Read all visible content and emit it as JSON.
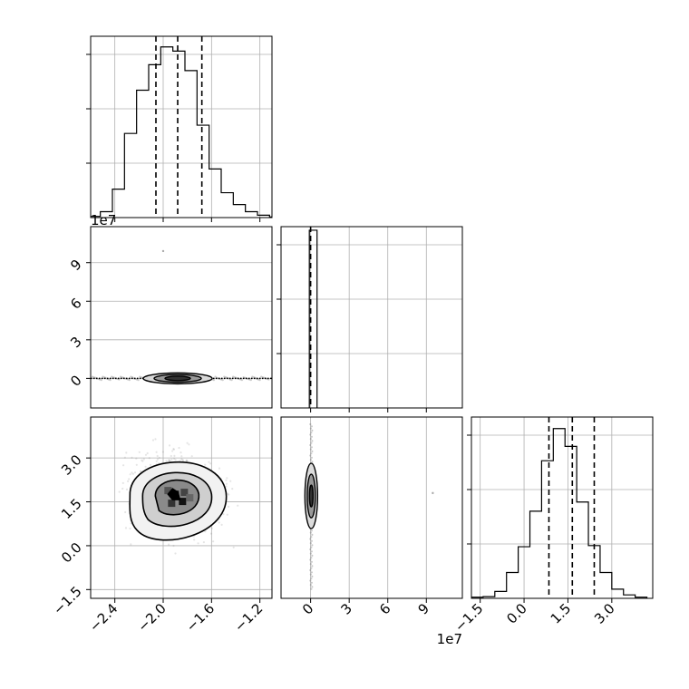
{
  "chart_data": [
    {
      "type": "histogram",
      "panel": "row1-col1",
      "x_ticks": [
        "-2.4",
        "-2.0",
        "-1.6",
        "-1.2"
      ],
      "show_x_ticklabels": false,
      "xlim": [
        -2.6,
        -1.1
      ],
      "bin_edges": [
        -2.62,
        -2.52,
        -2.42,
        -2.32,
        -2.22,
        -2.12,
        -2.02,
        -1.92,
        -1.82,
        -1.72,
        -1.62,
        -1.52,
        -1.42,
        -1.32,
        -1.22,
        -1.12,
        -1.02
      ],
      "counts": [
        2,
        10,
        48,
        142,
        215,
        258,
        288,
        281,
        248,
        156,
        82,
        42,
        22,
        10,
        4,
        1
      ],
      "ymax": 300,
      "quantiles": [
        -2.06,
        -1.88,
        -1.68
      ],
      "grid": true
    },
    {
      "type": "scatter-density",
      "panel": "row2-col1",
      "y_ticks": [
        "0",
        "3",
        "6",
        "9"
      ],
      "y_tick_values": [
        0,
        3,
        6,
        9
      ],
      "xlim": [
        -2.6,
        -1.1
      ],
      "ylim": [
        -2.3,
        11.8
      ],
      "offset_text": "1e7",
      "outlier": {
        "x": -2.0,
        "y": 9.9
      },
      "grid": true
    },
    {
      "type": "histogram",
      "panel": "row2-col2",
      "xlim": [
        -2.3,
        11.8
      ],
      "x_ticks": [
        "0",
        "3",
        "6",
        "9"
      ],
      "bin_edges": [
        -0.1,
        0.5
      ],
      "counts": [
        1
      ],
      "ymax": 1,
      "quantiles": [
        0.0
      ],
      "grid": true
    },
    {
      "type": "scatter-density",
      "panel": "row3-col1",
      "xlim": [
        -2.6,
        -1.1
      ],
      "ylim": [
        -1.8,
        4.4
      ],
      "x_ticks": [
        "−2.4",
        "−2.0",
        "−1.6",
        "−1.2"
      ],
      "x_tick_values": [
        -2.4,
        -2.0,
        -1.6,
        -1.2
      ],
      "y_ticks": [
        "−1.5",
        "0.0",
        "1.5",
        "3.0"
      ],
      "y_tick_values": [
        -1.5,
        0.0,
        1.5,
        3.0
      ],
      "center": {
        "x": -1.9,
        "y": 1.7
      },
      "grid": true
    },
    {
      "type": "scatter-density",
      "panel": "row3-col2",
      "xlim": [
        -2.3,
        11.8
      ],
      "ylim": [
        -1.8,
        4.4
      ],
      "x_ticks": [
        "0",
        "3",
        "6",
        "9"
      ],
      "x_tick_values": [
        0,
        3,
        6,
        9
      ],
      "offset_text": "1e7",
      "outlier": {
        "x": 9.5,
        "y": 1.8
      },
      "grid": true
    },
    {
      "type": "histogram",
      "panel": "row3-col3",
      "xlim": [
        -1.8,
        4.4
      ],
      "x_ticks": [
        "−1.5",
        "0.0",
        "1.5",
        "3.0"
      ],
      "x_tick_values": [
        -1.5,
        0.0,
        1.5,
        3.0
      ],
      "bin_edges": [
        -1.8,
        -1.4,
        -1.0,
        -0.6,
        -0.2,
        0.2,
        0.6,
        1.0,
        1.4,
        1.8,
        2.2,
        2.6,
        3.0,
        3.4,
        3.8,
        4.2
      ],
      "counts": [
        2,
        3,
        12,
        45,
        90,
        152,
        240,
        296,
        265,
        168,
        92,
        45,
        16,
        6,
        2
      ],
      "ymax": 310,
      "quantiles": [
        0.85,
        1.65,
        2.4
      ],
      "grid": true
    }
  ]
}
